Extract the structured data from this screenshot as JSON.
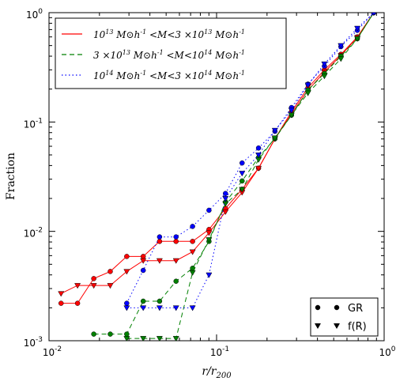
{
  "chart_data": {
    "type": "line",
    "title": "",
    "xlabel": "r/r200",
    "ylabel": "Fraction",
    "xscale": "log",
    "yscale": "log",
    "xlim": [
      0.01,
      1
    ],
    "ylim": [
      0.001,
      1
    ],
    "x_ticks": [
      {
        "value": 0.01,
        "base": "10",
        "exp": "-2"
      },
      {
        "value": 0.1,
        "base": "10",
        "exp": "-1"
      },
      {
        "value": 1,
        "base": "10",
        "exp": "0"
      }
    ],
    "y_ticks": [
      {
        "value": 0.001,
        "base": "10",
        "exp": "-3"
      },
      {
        "value": 0.01,
        "base": "10",
        "exp": "-2"
      },
      {
        "value": 0.1,
        "base": "10",
        "exp": "-1"
      },
      {
        "value": 1,
        "base": "10",
        "exp": "0"
      }
    ],
    "grid": false,
    "legend_lines_position": "top-left",
    "legend_markers_position": "bottom-right",
    "legend_lines": [
      {
        "label": "10^13 M⊙h^-1 <M<3 ×10^13 M⊙h^-1",
        "color": "#ff0000",
        "dash": "solid"
      },
      {
        "label": "3 ×10^13 M⊙h^-1 <M<10^14 M⊙h^-1",
        "color": "#008000",
        "dash": "dashed"
      },
      {
        "label": "10^14 M⊙h^-1 <M<3 ×10^14 M⊙h^-1",
        "color": "#0000ff",
        "dash": "dotted"
      }
    ],
    "legend_markers": [
      {
        "label": "GR",
        "marker": "circle"
      },
      {
        "label": "f(R)",
        "marker": "triangle-down"
      }
    ],
    "series": [
      {
        "mass_bin": "low",
        "model": "GR",
        "color": "#ff0000",
        "marker": "circle",
        "dash": "solid",
        "x": [
          0.0118,
          0.0148,
          0.0185,
          0.0232,
          0.0291,
          0.0365,
          0.0457,
          0.0573,
          0.0719,
          0.0901,
          0.113,
          0.142,
          0.178,
          0.223,
          0.28,
          0.351,
          0.44,
          0.552,
          0.692,
          0.867
        ],
        "y": [
          0.0022,
          0.0022,
          0.0037,
          0.0043,
          0.0059,
          0.0059,
          0.0081,
          0.0081,
          0.0081,
          0.0104,
          0.0162,
          0.0243,
          0.0378,
          0.0702,
          0.1243,
          0.2054,
          0.3,
          0.4162,
          0.6,
          1.0
        ]
      },
      {
        "mass_bin": "low",
        "model": "f(R)",
        "color": "#ff0000",
        "marker": "triangle-down",
        "dash": "solid",
        "x": [
          0.0118,
          0.0148,
          0.0185,
          0.0232,
          0.0291,
          0.0365,
          0.0457,
          0.0573,
          0.0719,
          0.0901,
          0.113,
          0.142,
          0.178,
          0.223,
          0.28,
          0.351,
          0.44,
          0.552,
          0.692,
          0.867
        ],
        "y": [
          0.0027,
          0.0032,
          0.0032,
          0.0032,
          0.0043,
          0.0054,
          0.0054,
          0.0054,
          0.0065,
          0.0097,
          0.0151,
          0.0227,
          0.0378,
          0.0702,
          0.1189,
          0.1946,
          0.2865,
          0.4054,
          0.5946,
          1.0
        ]
      },
      {
        "mass_bin": "mid",
        "model": "GR",
        "color": "#008000",
        "marker": "circle",
        "dash": "dashed",
        "x": [
          0.0185,
          0.0232,
          0.0291,
          0.0365,
          0.0457,
          0.0573,
          0.0719,
          0.0901,
          0.113,
          0.142,
          0.178,
          0.223,
          0.28,
          0.351,
          0.44,
          0.552,
          0.692,
          0.867
        ],
        "y": [
          0.00115,
          0.00115,
          0.00115,
          0.0023,
          0.0023,
          0.0035,
          0.0046,
          0.0081,
          0.0185,
          0.0289,
          0.0474,
          0.0705,
          0.1155,
          0.1963,
          0.2775,
          0.4,
          0.5775,
          1.0
        ]
      },
      {
        "mass_bin": "mid",
        "model": "f(R)",
        "color": "#008000",
        "marker": "triangle-down",
        "dash": "dashed",
        "x": [
          0.0291,
          0.0365,
          0.0457,
          0.0573,
          0.0719,
          0.0901,
          0.113,
          0.142,
          0.178,
          0.223,
          0.28,
          0.351,
          0.44,
          0.552,
          0.692,
          0.867
        ],
        "y": [
          0.00105,
          0.00105,
          0.00105,
          0.00105,
          0.0042,
          0.0084,
          0.0179,
          0.0242,
          0.0453,
          0.0716,
          0.1158,
          0.1842,
          0.2632,
          0.3789,
          0.5789,
          1.0
        ]
      },
      {
        "mass_bin": "high",
        "model": "GR",
        "color": "#0000ff",
        "marker": "circle",
        "dash": "dotted",
        "x": [
          0.0291,
          0.0365,
          0.0457,
          0.0573,
          0.0719,
          0.0901,
          0.113,
          0.142,
          0.178,
          0.223,
          0.28,
          0.351,
          0.44,
          0.552,
          0.692,
          0.867
        ],
        "y": [
          0.0022,
          0.0044,
          0.0089,
          0.0089,
          0.0111,
          0.0156,
          0.0222,
          0.0422,
          0.0578,
          0.0822,
          0.1356,
          0.2222,
          0.3244,
          0.4889,
          0.6889,
          1.0
        ]
      },
      {
        "mass_bin": "high",
        "model": "f(R)",
        "color": "#0000ff",
        "marker": "triangle-down",
        "dash": "dotted",
        "x": [
          0.0291,
          0.0365,
          0.0457,
          0.0573,
          0.0719,
          0.0901,
          0.113,
          0.142,
          0.178,
          0.223,
          0.28,
          0.351,
          0.44,
          0.552,
          0.692,
          0.867
        ],
        "y": [
          0.002,
          0.002,
          0.002,
          0.002,
          0.002,
          0.004,
          0.02,
          0.034,
          0.05,
          0.084,
          0.128,
          0.218,
          0.34,
          0.5,
          0.72,
          1.0
        ]
      }
    ]
  }
}
